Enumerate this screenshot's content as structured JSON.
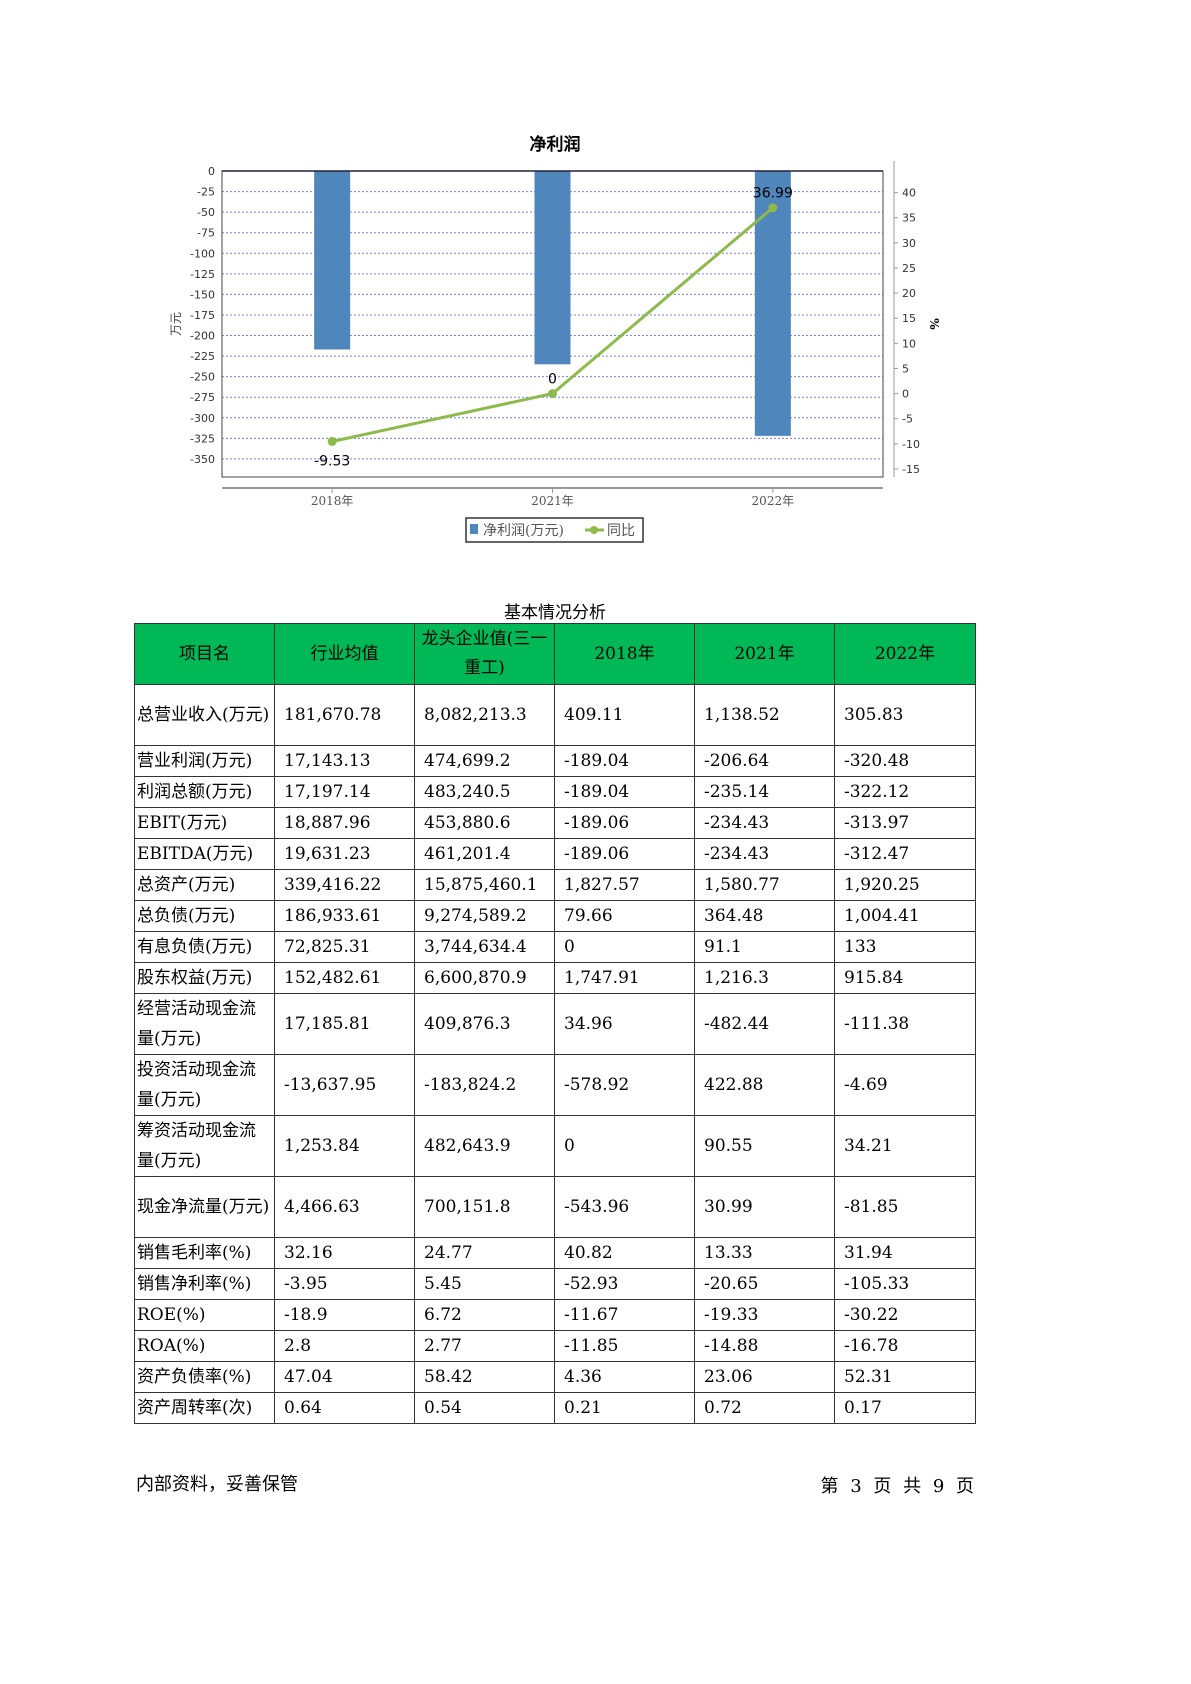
{
  "chart_data": {
    "type": "bar+line",
    "title": "净利润",
    "categories": [
      "2018年",
      "2021年",
      "2022年"
    ],
    "ylabel_left": "万元",
    "ylabel_right": "%",
    "ylim_left": [
      -372,
      0
    ],
    "yticks_left": [
      0,
      -25,
      -50,
      -75,
      -100,
      -125,
      -150,
      -175,
      -200,
      -225,
      -250,
      -275,
      -300,
      -325,
      -350
    ],
    "ylim_right": [
      -16.6,
      44.3
    ],
    "yticks_right": [
      40,
      35,
      30,
      25,
      20,
      15,
      10,
      5,
      0,
      -5,
      -10,
      -15
    ],
    "grid": true,
    "legend_position": "bottom",
    "series": [
      {
        "name": "净利润(万元)",
        "kind": "bar",
        "axis": "left",
        "color": "#4f86bb",
        "values": [
          -217,
          -235,
          -322
        ]
      },
      {
        "name": "同比",
        "kind": "line",
        "axis": "right",
        "color": "#8dba4a",
        "values": [
          -9.53,
          0,
          36.99
        ],
        "labels": [
          "-9.53",
          "0",
          "36.99"
        ]
      }
    ]
  },
  "table": {
    "title": "基本情况分析",
    "headers": [
      "项目名",
      "行业均值",
      "龙头企业值(三一重工)",
      "2018年",
      "2021年",
      "2022年"
    ],
    "header_color": "#00b956",
    "rows": [
      [
        "总营业收入(万元)",
        "181,670.78",
        "8,082,213.3",
        "409.11",
        "1,138.52",
        "305.83"
      ],
      [
        "营业利润(万元)",
        "17,143.13",
        "474,699.2",
        "-189.04",
        "-206.64",
        "-320.48"
      ],
      [
        "利润总额(万元)",
        "17,197.14",
        "483,240.5",
        "-189.04",
        "-235.14",
        "-322.12"
      ],
      [
        "EBIT(万元)",
        "18,887.96",
        "453,880.6",
        "-189.06",
        "-234.43",
        "-313.97"
      ],
      [
        "EBITDA(万元)",
        "19,631.23",
        "461,201.4",
        "-189.06",
        "-234.43",
        "-312.47"
      ],
      [
        "总资产(万元)",
        "339,416.22",
        "15,875,460.1",
        "1,827.57",
        "1,580.77",
        "1,920.25"
      ],
      [
        "总负债(万元)",
        "186,933.61",
        "9,274,589.2",
        "79.66",
        "364.48",
        "1,004.41"
      ],
      [
        "有息负债(万元)",
        "72,825.31",
        "3,744,634.4",
        "0",
        "91.1",
        "133"
      ],
      [
        "股东权益(万元)",
        "152,482.61",
        "6,600,870.9",
        "1,747.91",
        "1,216.3",
        "915.84"
      ],
      [
        "经营活动现金流量(万元)",
        "17,185.81",
        "409,876.3",
        "34.96",
        "-482.44",
        "-111.38"
      ],
      [
        "投资活动现金流量(万元)",
        "-13,637.95",
        "-183,824.2",
        "-578.92",
        "422.88",
        "-4.69"
      ],
      [
        "筹资活动现金流量(万元)",
        "1,253.84",
        "482,643.9",
        "0",
        "90.55",
        "34.21"
      ],
      [
        "现金净流量(万元)",
        "4,466.63",
        "700,151.8",
        "-543.96",
        "30.99",
        "-81.85"
      ],
      [
        "销售毛利率(%)",
        "32.16",
        "24.77",
        "40.82",
        "13.33",
        "31.94"
      ],
      [
        "销售净利率(%)",
        "-3.95",
        "5.45",
        "-52.93",
        "-20.65",
        "-105.33"
      ],
      [
        "ROE(%)",
        "-18.9",
        "6.72",
        "-11.67",
        "-19.33",
        "-30.22"
      ],
      [
        "ROA(%)",
        "2.8",
        "2.77",
        "-11.85",
        "-14.88",
        "-16.78"
      ],
      [
        "资产负债率(%)",
        "47.04",
        "58.42",
        "4.36",
        "23.06",
        "52.31"
      ],
      [
        "资产周转率(次)",
        "0.64",
        "0.54",
        "0.21",
        "0.72",
        "0.17"
      ]
    ]
  },
  "footer": {
    "left": "内部资料，妥善保管",
    "right": "第 3 页  共 9 页"
  }
}
